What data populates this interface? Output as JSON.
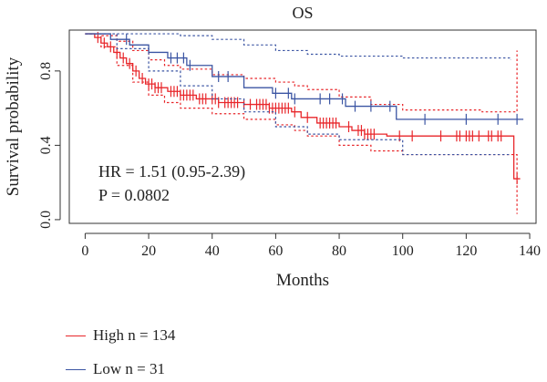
{
  "chart_data": {
    "type": "line",
    "title": "OS",
    "xlabel": "Months",
    "ylabel": "Survival probability",
    "xlim": [
      -5,
      142
    ],
    "ylim": [
      -0.02,
      1.02
    ],
    "xticks": [
      0,
      20,
      40,
      60,
      80,
      100,
      120,
      140
    ],
    "yticks": [
      0.0,
      0.4,
      0.8
    ],
    "ytick_labels": [
      "0.0",
      "0.4",
      "0.8"
    ],
    "grid": false,
    "legend_position": "bottom-left",
    "annotations": [
      "HR = 1.51 (0.95-2.39)",
      "P = 0.0802"
    ],
    "series": [
      {
        "name": "High n = 134",
        "color": "#e8262a",
        "step": [
          [
            0,
            1.0
          ],
          [
            3,
            0.98
          ],
          [
            5,
            0.95
          ],
          [
            7,
            0.93
          ],
          [
            9,
            0.9
          ],
          [
            11,
            0.87
          ],
          [
            13,
            0.84
          ],
          [
            15,
            0.8
          ],
          [
            17,
            0.76
          ],
          [
            19,
            0.73
          ],
          [
            22,
            0.71
          ],
          [
            26,
            0.69
          ],
          [
            30,
            0.67
          ],
          [
            35,
            0.65
          ],
          [
            42,
            0.63
          ],
          [
            50,
            0.62
          ],
          [
            58,
            0.6
          ],
          [
            65,
            0.58
          ],
          [
            68,
            0.55
          ],
          [
            73,
            0.52
          ],
          [
            80,
            0.5
          ],
          [
            84,
            0.48
          ],
          [
            88,
            0.46
          ],
          [
            95,
            0.45
          ],
          [
            135,
            0.45
          ],
          [
            135,
            0.22
          ],
          [
            137,
            0.22
          ]
        ],
        "upper_ci": [
          [
            0,
            1.0
          ],
          [
            5,
            0.99
          ],
          [
            10,
            0.96
          ],
          [
            15,
            0.91
          ],
          [
            20,
            0.86
          ],
          [
            25,
            0.83
          ],
          [
            30,
            0.81
          ],
          [
            40,
            0.78
          ],
          [
            50,
            0.76
          ],
          [
            60,
            0.74
          ],
          [
            66,
            0.72
          ],
          [
            70,
            0.7
          ],
          [
            80,
            0.66
          ],
          [
            90,
            0.62
          ],
          [
            100,
            0.59
          ],
          [
            125,
            0.58
          ],
          [
            135,
            0.58
          ],
          [
            136,
            0.91
          ]
        ],
        "lower_ci": [
          [
            0,
            1.0
          ],
          [
            5,
            0.93
          ],
          [
            10,
            0.83
          ],
          [
            15,
            0.74
          ],
          [
            20,
            0.67
          ],
          [
            25,
            0.63
          ],
          [
            30,
            0.6
          ],
          [
            40,
            0.57
          ],
          [
            50,
            0.54
          ],
          [
            60,
            0.51
          ],
          [
            66,
            0.48
          ],
          [
            70,
            0.45
          ],
          [
            80,
            0.4
          ],
          [
            90,
            0.37
          ],
          [
            100,
            0.35
          ],
          [
            135,
            0.35
          ],
          [
            136,
            0.03
          ]
        ],
        "censor_x": [
          4,
          6,
          8,
          10,
          12,
          14,
          16,
          18,
          20,
          21,
          22,
          23,
          24,
          27,
          28,
          29,
          30,
          31,
          32,
          33,
          34,
          36,
          37,
          38,
          40,
          41,
          42,
          44,
          45,
          46,
          47,
          48,
          50,
          52,
          54,
          55,
          56,
          57,
          58,
          59,
          60,
          61,
          62,
          63,
          64,
          66,
          70,
          74,
          75,
          76,
          77,
          78,
          79,
          83,
          86,
          87,
          88,
          89,
          90,
          91,
          99,
          103,
          112,
          117,
          118,
          120,
          121,
          122,
          124,
          127,
          128,
          130,
          131,
          136
        ]
      },
      {
        "name": "Low n = 31",
        "color": "#3b55a3",
        "step": [
          [
            0,
            1.0
          ],
          [
            8,
            0.97
          ],
          [
            14,
            0.94
          ],
          [
            20,
            0.9
          ],
          [
            26,
            0.87
          ],
          [
            32,
            0.83
          ],
          [
            40,
            0.77
          ],
          [
            50,
            0.71
          ],
          [
            59,
            0.68
          ],
          [
            65,
            0.65
          ],
          [
            82,
            0.61
          ],
          [
            98,
            0.54
          ],
          [
            138,
            0.54
          ]
        ],
        "upper_ci": [
          [
            0,
            1.0
          ],
          [
            10,
            1.0
          ],
          [
            20,
            1.0
          ],
          [
            30,
            0.99
          ],
          [
            40,
            0.97
          ],
          [
            50,
            0.94
          ],
          [
            60,
            0.91
          ],
          [
            70,
            0.89
          ],
          [
            80,
            0.88
          ],
          [
            100,
            0.87
          ],
          [
            134,
            0.86
          ]
        ],
        "lower_ci": [
          [
            0,
            1.0
          ],
          [
            10,
            0.92
          ],
          [
            20,
            0.8
          ],
          [
            30,
            0.72
          ],
          [
            40,
            0.65
          ],
          [
            50,
            0.58
          ],
          [
            60,
            0.5
          ],
          [
            70,
            0.46
          ],
          [
            80,
            0.43
          ],
          [
            100,
            0.35
          ],
          [
            134,
            0.35
          ]
        ],
        "censor_x": [
          13,
          27,
          29,
          31,
          33,
          42,
          45,
          60,
          64,
          66,
          74,
          77,
          81,
          85,
          90,
          96,
          107,
          120,
          130,
          136
        ]
      }
    ]
  }
}
